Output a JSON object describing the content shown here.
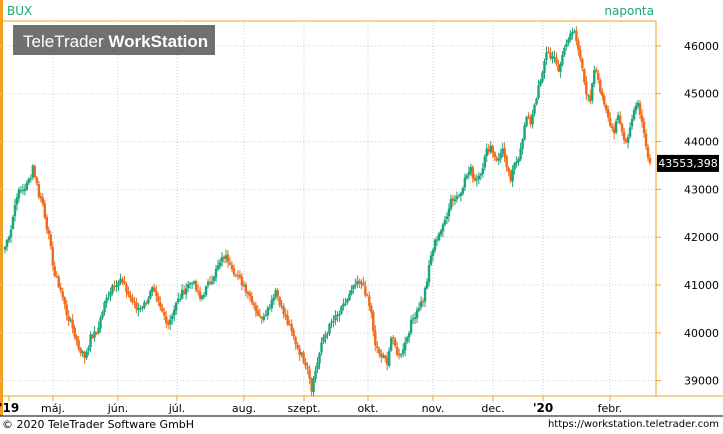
{
  "chart_data": {
    "type": "candlestick",
    "symbol": "BUX",
    "interval_label": "naponta",
    "watermark": "TeleTrader WorkStation",
    "watermark_brand": "TeleTrader",
    "watermark_product": "WorkStation",
    "last_value_label": "43553,398",
    "last_value": 43553.398,
    "y_ticks": [
      39000,
      40000,
      41000,
      42000,
      43000,
      44000,
      45000,
      46000
    ],
    "y_tick_labels": [
      "39000",
      "40000",
      "41000",
      "42000",
      "43000",
      "44000",
      "45000",
      "46000"
    ],
    "x_tick_labels": [
      "'19",
      "máj.",
      "jún.",
      "júl.",
      "aug.",
      "szept.",
      "okt.",
      "nov.",
      "dec.",
      "'20",
      "febr."
    ],
    "ylim": [
      38700,
      46500
    ],
    "colors": {
      "up": "#1aa57a",
      "down": "#f06a1a",
      "axis": "#f0a020",
      "accent": "#1aa57a"
    },
    "grid": true,
    "waypoints": [
      [
        0,
        41800
      ],
      [
        3,
        42200
      ],
      [
        6,
        42900
      ],
      [
        9,
        43000
      ],
      [
        11,
        43100
      ],
      [
        13,
        43300
      ],
      [
        14,
        43500
      ],
      [
        15,
        43300
      ],
      [
        17,
        42900
      ],
      [
        19,
        42700
      ],
      [
        22,
        42000
      ],
      [
        25,
        41200
      ],
      [
        28,
        40900
      ],
      [
        31,
        40400
      ],
      [
        34,
        40100
      ],
      [
        37,
        39700
      ],
      [
        40,
        39500
      ],
      [
        43,
        39900
      ],
      [
        46,
        40000
      ],
      [
        50,
        40600
      ],
      [
        54,
        41000
      ],
      [
        58,
        41100
      ],
      [
        62,
        40800
      ],
      [
        66,
        40500
      ],
      [
        70,
        40600
      ],
      [
        74,
        40900
      ],
      [
        78,
        40500
      ],
      [
        82,
        40200
      ],
      [
        86,
        40600
      ],
      [
        90,
        40900
      ],
      [
        94,
        41100
      ],
      [
        98,
        40700
      ],
      [
        102,
        41000
      ],
      [
        106,
        41300
      ],
      [
        110,
        41600
      ],
      [
        113,
        41500
      ],
      [
        116,
        41200
      ],
      [
        120,
        41000
      ],
      [
        124,
        40700
      ],
      [
        128,
        40300
      ],
      [
        132,
        40500
      ],
      [
        136,
        40900
      ],
      [
        140,
        40400
      ],
      [
        144,
        40000
      ],
      [
        148,
        39600
      ],
      [
        152,
        39300
      ],
      [
        154,
        38850
      ],
      [
        157,
        39400
      ],
      [
        160,
        39900
      ],
      [
        164,
        40200
      ],
      [
        168,
        40400
      ],
      [
        172,
        40700
      ],
      [
        176,
        41000
      ],
      [
        180,
        41000
      ],
      [
        184,
        40400
      ],
      [
        186,
        39700
      ],
      [
        189,
        39500
      ],
      [
        192,
        39400
      ],
      [
        194,
        39900
      ],
      [
        196,
        39700
      ],
      [
        198,
        39500
      ],
      [
        201,
        39800
      ],
      [
        204,
        40200
      ],
      [
        207,
        40500
      ],
      [
        210,
        40700
      ],
      [
        212,
        41100
      ],
      [
        214,
        41600
      ],
      [
        216,
        41900
      ],
      [
        218,
        42100
      ],
      [
        220,
        42200
      ],
      [
        222,
        42500
      ],
      [
        224,
        42800
      ],
      [
        226,
        42800
      ],
      [
        228,
        42900
      ],
      [
        230,
        43100
      ],
      [
        232,
        43300
      ],
      [
        234,
        43400
      ],
      [
        236,
        43200
      ],
      [
        238,
        43300
      ],
      [
        240,
        43500
      ],
      [
        242,
        43800
      ],
      [
        244,
        43900
      ],
      [
        246,
        43700
      ],
      [
        248,
        43600
      ],
      [
        250,
        43900
      ],
      [
        252,
        43400
      ],
      [
        254,
        43200
      ],
      [
        256,
        43500
      ],
      [
        258,
        43700
      ],
      [
        260,
        44100
      ],
      [
        262,
        44500
      ],
      [
        264,
        44400
      ],
      [
        266,
        44800
      ],
      [
        268,
        45100
      ],
      [
        270,
        45400
      ],
      [
        272,
        45900
      ],
      [
        274,
        45800
      ],
      [
        276,
        45700
      ],
      [
        278,
        45500
      ],
      [
        280,
        45800
      ],
      [
        282,
        46100
      ],
      [
        284,
        46200
      ],
      [
        286,
        46300
      ],
      [
        288,
        45900
      ],
      [
        290,
        45600
      ],
      [
        292,
        45000
      ],
      [
        294,
        44800
      ],
      [
        296,
        45500
      ],
      [
        298,
        45300
      ],
      [
        300,
        44900
      ],
      [
        302,
        44700
      ],
      [
        304,
        44400
      ],
      [
        306,
        44200
      ],
      [
        308,
        44500
      ],
      [
        310,
        44200
      ],
      [
        312,
        44000
      ],
      [
        314,
        44300
      ],
      [
        316,
        44700
      ],
      [
        318,
        44800
      ],
      [
        320,
        44400
      ],
      [
        322,
        43900
      ],
      [
        324,
        43553.398
      ]
    ]
  }
}
